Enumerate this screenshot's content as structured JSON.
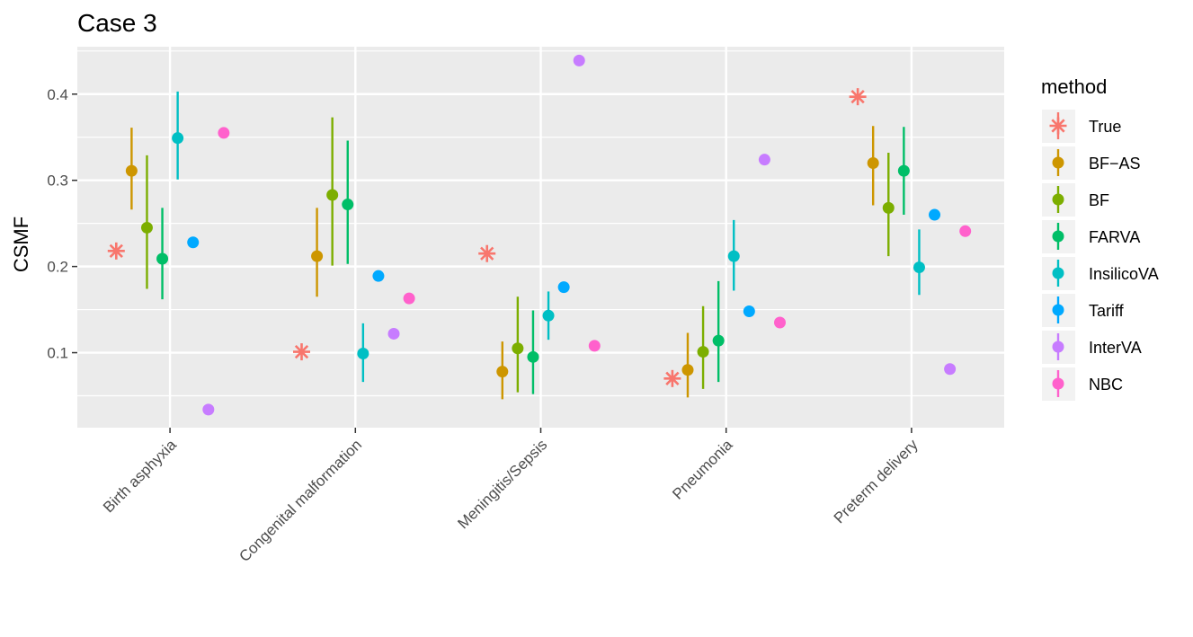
{
  "chart_data": {
    "type": "scatter",
    "title": "Case 3",
    "xlabel": "",
    "ylabel": "CSMF",
    "ylim": [
      0.013,
      0.455
    ],
    "yticks": [
      0.1,
      0.2,
      0.3,
      0.4
    ],
    "ytick_labels": [
      "0.1",
      "0.2",
      "0.3",
      "0.4"
    ],
    "categories": [
      "Birth asphyxia",
      "Congenital malformation",
      "Meningitis/Sepsis",
      "Pneumonia",
      "Preterm delivery"
    ],
    "legend": {
      "title": "method",
      "position": "right"
    },
    "series": [
      {
        "name": "True",
        "color": "#F8766D",
        "marker": "asterisk",
        "values": [
          0.218,
          0.101,
          0.215,
          0.07,
          0.397
        ]
      },
      {
        "name": "BF−AS",
        "color": "#CD9600",
        "marker": "point",
        "values": [
          0.311,
          0.212,
          0.078,
          0.08,
          0.32
        ],
        "lower": [
          0.266,
          0.165,
          0.046,
          0.048,
          0.271
        ],
        "upper": [
          0.361,
          0.268,
          0.113,
          0.123,
          0.363
        ]
      },
      {
        "name": "BF",
        "color": "#7CAE00",
        "marker": "point",
        "values": [
          0.245,
          0.283,
          0.105,
          0.101,
          0.268
        ],
        "lower": [
          0.174,
          0.201,
          0.054,
          0.058,
          0.212
        ],
        "upper": [
          0.329,
          0.373,
          0.165,
          0.154,
          0.332
        ]
      },
      {
        "name": "FARVA",
        "color": "#00BE67",
        "marker": "point",
        "values": [
          0.209,
          0.272,
          0.095,
          0.114,
          0.311
        ],
        "lower": [
          0.162,
          0.203,
          0.052,
          0.066,
          0.26
        ],
        "upper": [
          0.268,
          0.346,
          0.149,
          0.183,
          0.362
        ]
      },
      {
        "name": "InsilicoVA",
        "color": "#00BFC4",
        "marker": "point",
        "values": [
          0.349,
          0.099,
          0.143,
          0.212,
          0.199
        ],
        "lower": [
          0.301,
          0.066,
          0.115,
          0.172,
          0.167
        ],
        "upper": [
          0.403,
          0.134,
          0.171,
          0.254,
          0.243
        ]
      },
      {
        "name": "Tariff",
        "color": "#00A9FF",
        "marker": "point",
        "values": [
          0.228,
          0.189,
          0.176,
          0.148,
          0.26
        ]
      },
      {
        "name": "InterVA",
        "color": "#C77CFF",
        "marker": "point",
        "values": [
          0.034,
          0.122,
          0.439,
          0.324,
          0.081
        ]
      },
      {
        "name": "NBC",
        "color": "#FF61CC",
        "marker": "point",
        "values": [
          0.355,
          0.163,
          0.108,
          0.135,
          0.241
        ]
      }
    ]
  }
}
